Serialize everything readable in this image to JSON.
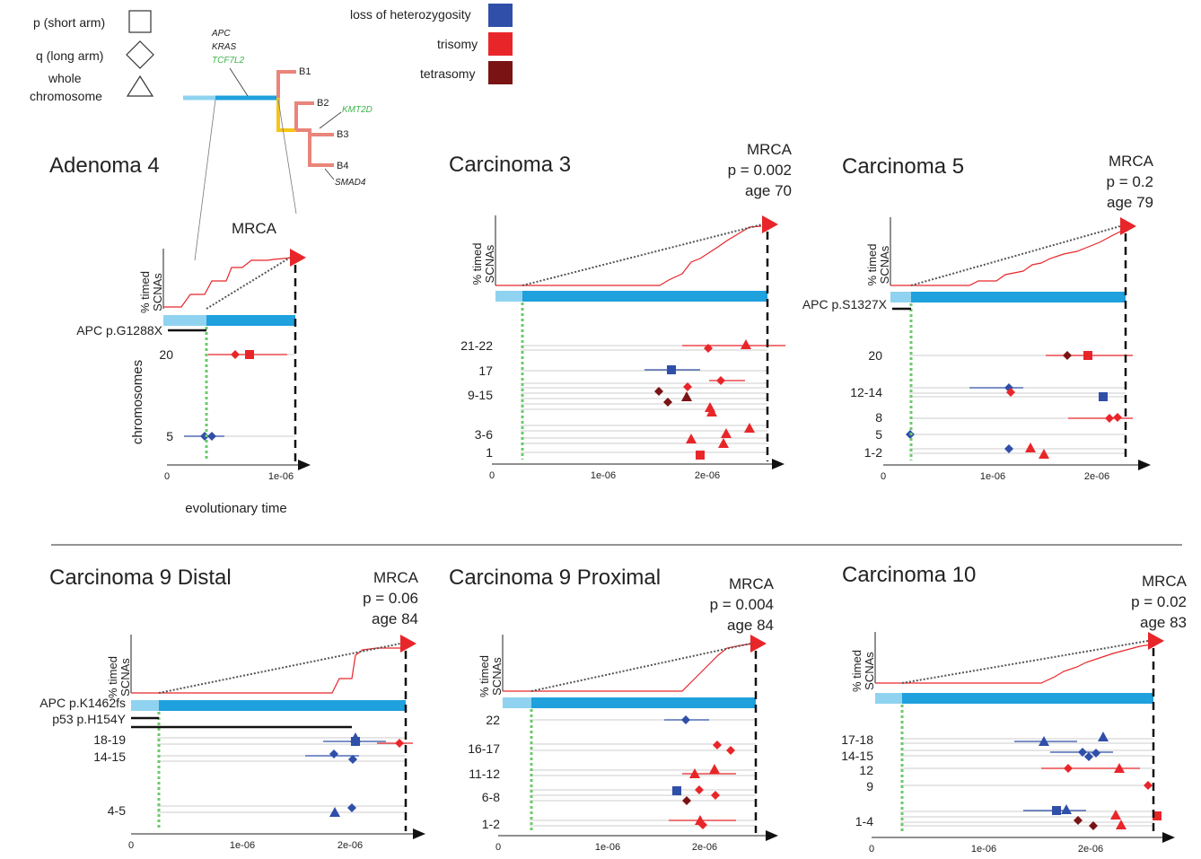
{
  "legend": {
    "shapes": [
      {
        "label": "p (short arm)",
        "shape": "square"
      },
      {
        "label": "q (long arm)",
        "shape": "diamond"
      },
      {
        "label": "whole",
        "shape": "triangle"
      },
      {
        "label": "chromosome",
        "shape": "none"
      }
    ],
    "colors": [
      {
        "label": "loss of heterozygosity",
        "color": "#2f4fa8"
      },
      {
        "label": "trisomy",
        "color": "#e8262a"
      },
      {
        "label": "tetrasomy",
        "color": "#7a1414"
      }
    ]
  },
  "tree": {
    "trunk_genes": [
      "APC",
      "KRAS",
      "TCF7L2"
    ],
    "leaves": [
      "B1",
      "B2",
      "B3",
      "B4"
    ],
    "branch_genes": [
      "KMT2D",
      "SMAD4"
    ],
    "colors": {
      "light": "#8fd3f0",
      "trunk": "#1ea1dd",
      "branch": "#e9857a",
      "yellow": "#f5c518",
      "green_gene": "#3cb54a"
    }
  },
  "panels": [
    {
      "title": "Adenoma 4",
      "mrca": [
        "MRCA"
      ],
      "mutations": [
        "APC p.G1288X"
      ],
      "chromosomes": [
        "20",
        "5"
      ],
      "y_title": "chromosomes",
      "x_label": "evolutionary time",
      "x_ticks": [
        "0",
        "1e-06"
      ],
      "scna_label": [
        "% timed",
        "SCNAs"
      ]
    },
    {
      "title": "Carcinoma 3",
      "mrca": [
        "MRCA",
        "p = 0.002",
        "age 70"
      ],
      "mutations": [],
      "chromosomes": [
        "21-22",
        "17",
        "9-15",
        "3-6",
        "1"
      ],
      "x_ticks": [
        "0",
        "1e-06",
        "2e-06"
      ],
      "scna_label": [
        "% timed",
        "SCNAs"
      ]
    },
    {
      "title": "Carcinoma 5",
      "mrca": [
        "MRCA",
        "p = 0.2",
        "age 79"
      ],
      "mutations": [
        "APC p.S1327X"
      ],
      "chromosomes": [
        "20",
        "12-14",
        "8",
        "5",
        "1-2"
      ],
      "x_ticks": [
        "0",
        "1e-06",
        "2e-06"
      ],
      "scna_label": [
        "% timed",
        "SCNAs"
      ]
    },
    {
      "title": "Carcinoma 9 Distal",
      "mrca": [
        "MRCA",
        "p =  0.06",
        "age 84"
      ],
      "mutations": [
        "APC p.K1462fs",
        "p53 p.H154Y"
      ],
      "chromosomes": [
        "18-19",
        "14-15",
        "4-5"
      ],
      "x_ticks": [
        "0",
        "1e-06",
        "2e-06"
      ],
      "scna_label": [
        "% timed",
        "SCNAs"
      ]
    },
    {
      "title": "Carcinoma 9 Proximal",
      "mrca": [
        "MRCA",
        "p =  0.004",
        "age 84"
      ],
      "mutations": [],
      "chromosomes": [
        "22",
        "16-17",
        "11-12",
        "6-8",
        "1-2"
      ],
      "x_ticks": [
        "0",
        "1e-06",
        "2e-06"
      ],
      "scna_label": [
        "% timed",
        "SCNAs"
      ]
    },
    {
      "title": "Carcinoma 10",
      "mrca": [
        "MRCA",
        "p =  0.02",
        "age 83"
      ],
      "mutations": [],
      "chromosomes": [
        "17-18",
        "14-15",
        "12",
        "9",
        "1-4"
      ],
      "x_ticks": [
        "0",
        "1e-06",
        "2e-06"
      ],
      "scna_label": [
        "% timed",
        "SCNAs"
      ]
    }
  ]
}
